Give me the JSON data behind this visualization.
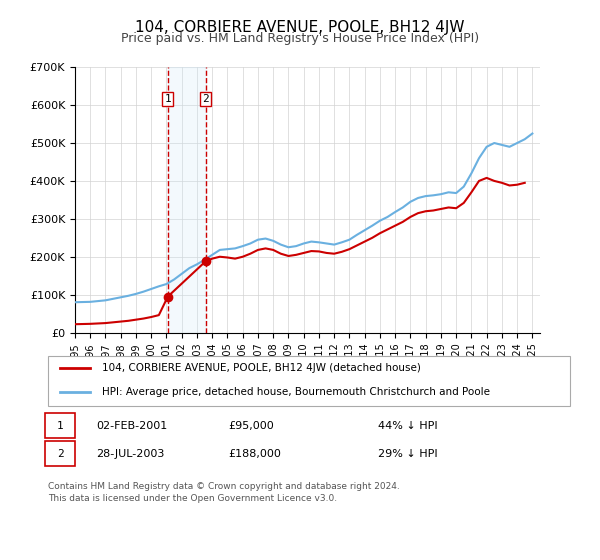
{
  "title": "104, CORBIERE AVENUE, POOLE, BH12 4JW",
  "subtitle": "Price paid vs. HM Land Registry's House Price Index (HPI)",
  "title_fontsize": 11,
  "subtitle_fontsize": 9,
  "ylabel": "",
  "ylim": [
    0,
    700000
  ],
  "yticks": [
    0,
    100000,
    200000,
    300000,
    400000,
    500000,
    600000,
    700000
  ],
  "ytick_labels": [
    "£0",
    "£100K",
    "£200K",
    "£300K",
    "£400K",
    "£500K",
    "£600K",
    "£700K"
  ],
  "xlim_start": 1995.0,
  "xlim_end": 2025.5,
  "sale1_year": 2001.09,
  "sale1_price": 95000,
  "sale2_year": 2003.57,
  "sale2_price": 188000,
  "hpi_color": "#6ab0e0",
  "price_color": "#cc0000",
  "shade_color": "#d0e8f8",
  "vline_color": "#cc0000",
  "legend_line1": "104, CORBIERE AVENUE, POOLE, BH12 4JW (detached house)",
  "legend_line2": "HPI: Average price, detached house, Bournemouth Christchurch and Poole",
  "table_row1": [
    "1",
    "02-FEB-2001",
    "£95,000",
    "44% ↓ HPI"
  ],
  "table_row2": [
    "2",
    "28-JUL-2003",
    "£188,000",
    "29% ↓ HPI"
  ],
  "footnote1": "Contains HM Land Registry data © Crown copyright and database right 2024.",
  "footnote2": "This data is licensed under the Open Government Licence v3.0.",
  "hpi_years": [
    1995,
    1995.5,
    1996,
    1996.5,
    1997,
    1997.5,
    1998,
    1998.5,
    1999,
    1999.5,
    2000,
    2000.5,
    2001,
    2001.5,
    2002,
    2002.5,
    2003,
    2003.5,
    2004,
    2004.5,
    2005,
    2005.5,
    2006,
    2006.5,
    2007,
    2007.5,
    2008,
    2008.5,
    2009,
    2009.5,
    2010,
    2010.5,
    2011,
    2011.5,
    2012,
    2012.5,
    2013,
    2013.5,
    2014,
    2014.5,
    2015,
    2015.5,
    2016,
    2016.5,
    2017,
    2017.5,
    2018,
    2018.5,
    2019,
    2019.5,
    2020,
    2020.5,
    2021,
    2021.5,
    2022,
    2022.5,
    2023,
    2023.5,
    2024,
    2024.5,
    2025
  ],
  "hpi_values": [
    80000,
    80500,
    81000,
    83000,
    85000,
    89000,
    93000,
    97000,
    102000,
    108000,
    115000,
    122000,
    128000,
    140000,
    155000,
    170000,
    180000,
    192000,
    205000,
    218000,
    220000,
    222000,
    228000,
    235000,
    245000,
    248000,
    242000,
    232000,
    225000,
    228000,
    235000,
    240000,
    238000,
    235000,
    232000,
    238000,
    245000,
    258000,
    270000,
    282000,
    295000,
    305000,
    318000,
    330000,
    345000,
    355000,
    360000,
    362000,
    365000,
    370000,
    368000,
    385000,
    420000,
    460000,
    490000,
    500000,
    495000,
    490000,
    500000,
    510000,
    525000
  ],
  "price_years": [
    1995,
    1995.5,
    1996,
    1996.5,
    1997,
    1997.5,
    1998,
    1998.5,
    1999,
    1999.5,
    2000,
    2000.5,
    2001.09,
    2003.57,
    2004,
    2004.5,
    2005,
    2005.5,
    2006,
    2006.5,
    2007,
    2007.5,
    2008,
    2008.5,
    2009,
    2009.5,
    2010,
    2010.5,
    2011,
    2011.5,
    2012,
    2012.5,
    2013,
    2013.5,
    2014,
    2014.5,
    2015,
    2015.5,
    2016,
    2016.5,
    2017,
    2017.5,
    2018,
    2018.5,
    2019,
    2019.5,
    2020,
    2020.5,
    2021,
    2021.5,
    2022,
    2022.5,
    2023,
    2023.5,
    2024,
    2024.5
  ],
  "price_values": [
    22000,
    22500,
    23000,
    24000,
    25000,
    27000,
    29000,
    31000,
    34000,
    37000,
    41000,
    46000,
    95000,
    188000,
    195000,
    200000,
    198000,
    195000,
    200000,
    208000,
    218000,
    222000,
    218000,
    208000,
    202000,
    205000,
    210000,
    215000,
    214000,
    210000,
    208000,
    213000,
    220000,
    230000,
    240000,
    250000,
    262000,
    272000,
    282000,
    292000,
    305000,
    315000,
    320000,
    322000,
    326000,
    330000,
    328000,
    342000,
    370000,
    400000,
    408000,
    400000,
    395000,
    388000,
    390000,
    395000
  ]
}
